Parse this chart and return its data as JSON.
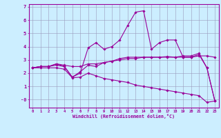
{
  "title": "",
  "xlabel": "Windchill (Refroidissement éolien,°C)",
  "bg_color": "#cceeff",
  "line_color": "#990099",
  "grid_color": "#9999bb",
  "xlim": [
    -0.5,
    23.5
  ],
  "ylim": [
    -0.6,
    7.2
  ],
  "xticks": [
    0,
    1,
    2,
    3,
    4,
    5,
    6,
    7,
    8,
    9,
    10,
    11,
    12,
    13,
    14,
    15,
    16,
    17,
    18,
    19,
    20,
    21,
    22,
    23
  ],
  "yticks": [
    0,
    1,
    2,
    3,
    4,
    5,
    6,
    7
  ],
  "ytick_labels": [
    "-0",
    "1",
    "2",
    "3",
    "4",
    "5",
    "6",
    "7"
  ],
  "series": [
    {
      "x": [
        0,
        1,
        2,
        3,
        4,
        5,
        6,
        7,
        8,
        9,
        10,
        11,
        12,
        13,
        14,
        15,
        16,
        17,
        18,
        19,
        20,
        21,
        22,
        23
      ],
      "y": [
        2.4,
        2.5,
        2.5,
        2.7,
        2.6,
        2.5,
        2.5,
        2.7,
        2.7,
        2.8,
        2.9,
        3.0,
        3.1,
        3.1,
        3.2,
        3.2,
        3.2,
        3.2,
        3.2,
        3.2,
        3.2,
        3.3,
        3.3,
        3.2
      ]
    },
    {
      "x": [
        0,
        1,
        2,
        3,
        4,
        5,
        6,
        7,
        8,
        9,
        10,
        11,
        12,
        13,
        14,
        15,
        16,
        17,
        18,
        19,
        20,
        21,
        22,
        23
      ],
      "y": [
        2.4,
        2.5,
        2.5,
        2.7,
        2.5,
        1.7,
        2.1,
        2.6,
        2.5,
        2.8,
        2.9,
        3.1,
        3.2,
        3.2,
        3.2,
        3.2,
        3.2,
        3.25,
        3.2,
        3.3,
        3.3,
        3.5,
        2.4,
        -0.1
      ]
    },
    {
      "x": [
        0,
        1,
        2,
        3,
        4,
        5,
        6,
        7,
        8,
        9,
        10,
        11,
        12,
        13,
        14,
        15,
        16,
        17,
        18,
        19,
        20,
        21,
        22,
        23
      ],
      "y": [
        2.4,
        2.5,
        2.5,
        2.6,
        2.5,
        1.7,
        2.0,
        3.9,
        4.3,
        3.8,
        4.0,
        4.5,
        5.6,
        6.6,
        6.7,
        3.8,
        4.3,
        4.5,
        4.5,
        3.2,
        3.2,
        3.4,
        2.4,
        -0.1
      ]
    },
    {
      "x": [
        0,
        1,
        2,
        3,
        4,
        5,
        6,
        7,
        8,
        9,
        10,
        11,
        12,
        13,
        14,
        15,
        16,
        17,
        18,
        19,
        20,
        21,
        22,
        23
      ],
      "y": [
        2.4,
        2.4,
        2.4,
        2.4,
        2.3,
        1.65,
        1.7,
        2.0,
        1.8,
        1.6,
        1.5,
        1.4,
        1.3,
        1.1,
        1.0,
        0.9,
        0.8,
        0.7,
        0.6,
        0.5,
        0.4,
        0.3,
        -0.2,
        -0.1
      ]
    }
  ]
}
